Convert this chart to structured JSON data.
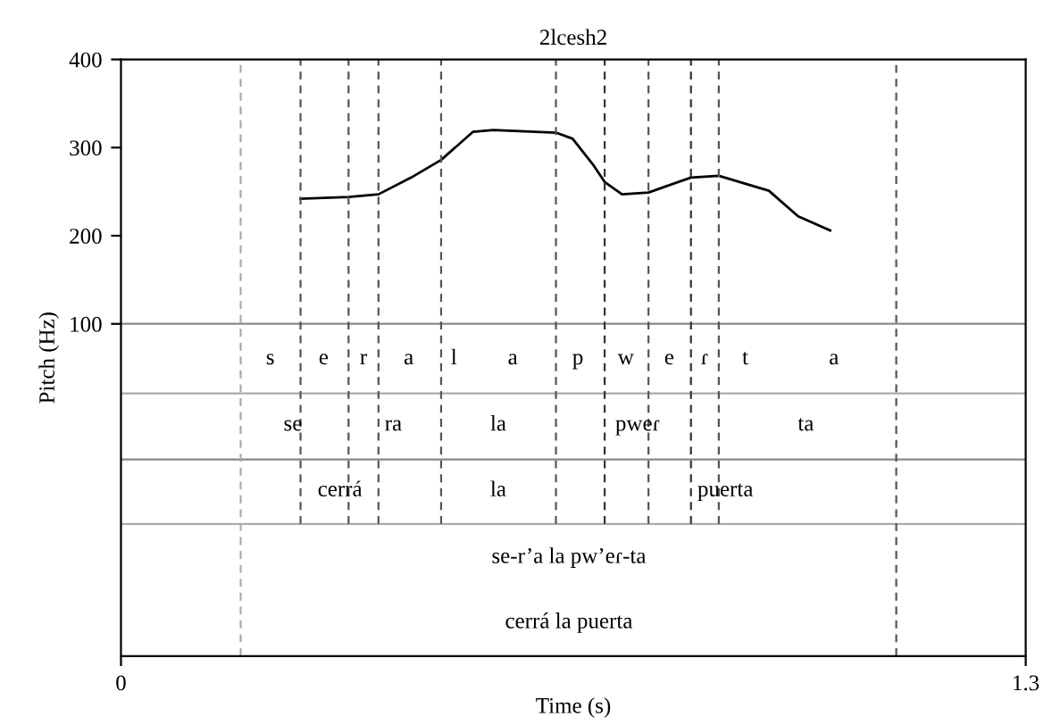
{
  "chart_data": {
    "type": "line",
    "title": "2lcesh2",
    "xlabel": "Time (s)",
    "ylabel": "Pitch (Hz)",
    "xlim": [
      0,
      1.3
    ],
    "xticks": [
      0,
      1.3
    ],
    "ylim": [
      -277,
      400
    ],
    "yticks": [
      100,
      200,
      300,
      400
    ],
    "grid": false,
    "legend": false,
    "marker": "none",
    "line_style": "solid",
    "series": [
      {
        "color": "#000000",
        "x": [
          0.258,
          0.327,
          0.37,
          0.417,
          0.46,
          0.506,
          0.535,
          0.625,
          0.649,
          0.678,
          0.695,
          0.72,
          0.758,
          0.819,
          0.859,
          0.931,
          0.973,
          1.019
        ],
        "values": [
          242,
          244,
          247,
          266,
          286,
          318,
          320,
          317,
          310,
          281,
          261,
          247,
          249,
          266,
          268,
          251,
          222,
          206
        ]
      }
    ],
    "ref_lines": [
      {
        "axis": "y",
        "value": 100,
        "color": "#888888",
        "line_style": "solid"
      },
      {
        "axis": "y",
        "value": 21,
        "color": "#aaaaaa",
        "line_style": "solid"
      },
      {
        "axis": "y",
        "value": -54,
        "color": "#888888",
        "line_style": "solid"
      },
      {
        "axis": "y",
        "value": -127,
        "color": "#aaaaaa",
        "line_style": "solid"
      },
      {
        "axis": "x",
        "value": 0.172,
        "color": "#aaaaaa",
        "line_style": "dashed"
      },
      {
        "axis": "x",
        "value": 0.258,
        "color": "#555555",
        "line_style": "dashed"
      },
      {
        "axis": "x",
        "value": 0.327,
        "color": "#555555",
        "line_style": "dashed"
      },
      {
        "axis": "x",
        "value": 0.37,
        "color": "#555555",
        "line_style": "dashed"
      },
      {
        "axis": "x",
        "value": 0.46,
        "color": "#555555",
        "line_style": "dashed"
      },
      {
        "axis": "x",
        "value": 0.625,
        "color": "#555555",
        "line_style": "dashed"
      },
      {
        "axis": "x",
        "value": 0.695,
        "color": "#333333",
        "line_style": "dashed"
      },
      {
        "axis": "x",
        "value": 0.758,
        "color": "#555555",
        "line_style": "dashed"
      },
      {
        "axis": "x",
        "value": 0.819,
        "color": "#333333",
        "line_style": "dashed"
      },
      {
        "axis": "x",
        "value": 0.859,
        "color": "#555555",
        "line_style": "dashed"
      },
      {
        "axis": "x",
        "value": 1.114,
        "color": "#555555",
        "line_style": "dashed"
      }
    ],
    "annotations": [
      "s",
      "e",
      "r",
      "a",
      "l",
      "a",
      "p",
      "w",
      "e",
      "ɾ",
      "t",
      "a",
      "se",
      "ra",
      "la",
      "pweɾ",
      "ta",
      "cerrá",
      "la",
      "puerta",
      "se-r’a la pw’eɾ-ta",
      "cerrá la puerta"
    ]
  }
}
